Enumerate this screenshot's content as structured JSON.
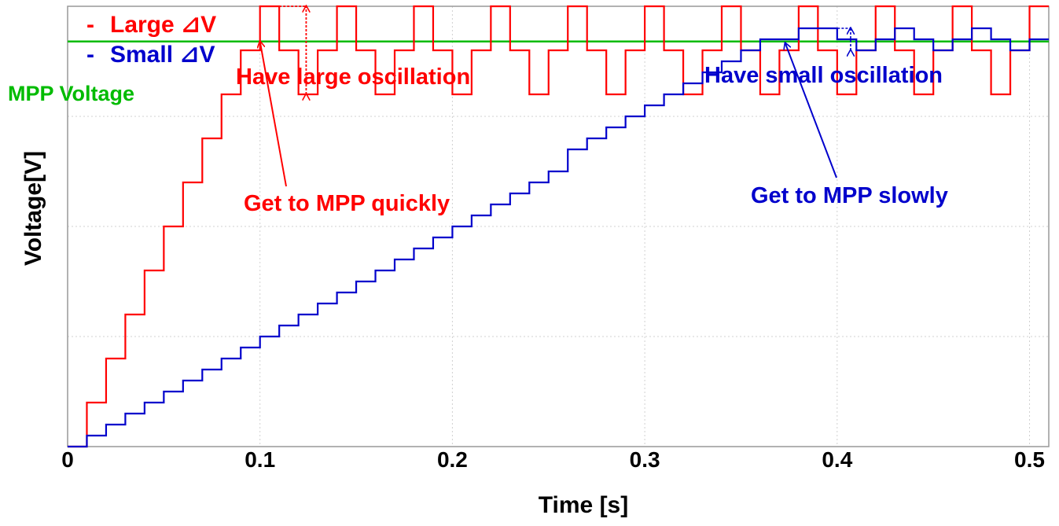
{
  "chart_data": {
    "type": "line",
    "xlabel": "Time [s]",
    "ylabel": "Voltage[V]",
    "xlim": [
      0,
      0.51
    ],
    "ylim": [
      0,
      10
    ],
    "x_ticks": [
      "0",
      "0.1",
      "0.2",
      "0.3",
      "0.4",
      "0.5"
    ],
    "x_tick_values": [
      0,
      0.1,
      0.2,
      0.3,
      0.4,
      0.5
    ],
    "y_gridlines": [
      2.5,
      5,
      7.5,
      10
    ],
    "y_tick_labels_shown": false,
    "grid": true,
    "legend_position": "top-left",
    "colors": {
      "large": "#ff0000",
      "small": "#0000cc",
      "mpp": "#00bb00",
      "grid": "#d0d0d0"
    },
    "mpp_voltage": 9.2,
    "mpp_label": "MPP Voltage",
    "series": [
      {
        "name": "Large ⊿V",
        "legend_label": "Large ⊿V",
        "color": "#ff0000",
        "x": [
          0,
          0.01,
          0.02,
          0.03,
          0.04,
          0.05,
          0.06,
          0.07,
          0.08,
          0.09,
          0.1,
          0.11,
          0.12,
          0.13,
          0.14,
          0.15,
          0.16,
          0.17,
          0.18,
          0.19,
          0.2,
          0.21,
          0.22,
          0.23,
          0.24,
          0.25,
          0.26,
          0.27,
          0.28,
          0.29,
          0.3,
          0.31,
          0.32,
          0.33,
          0.34,
          0.35,
          0.36,
          0.37,
          0.38,
          0.39,
          0.4,
          0.41,
          0.42,
          0.43,
          0.44,
          0.45,
          0.46,
          0.47,
          0.48,
          0.49,
          0.5,
          0.51
        ],
        "y": [
          0,
          1,
          2,
          3,
          4,
          5,
          6,
          7,
          8,
          9,
          10,
          9,
          8,
          9,
          10,
          9,
          8,
          9,
          10,
          9,
          8,
          9,
          10,
          9,
          8,
          9,
          10,
          9,
          8,
          9,
          10,
          9,
          8,
          9,
          10,
          9,
          8,
          9,
          10,
          9,
          8,
          9,
          10,
          9,
          8,
          9,
          10,
          9,
          8,
          9,
          10,
          10
        ]
      },
      {
        "name": "Small ⊿V",
        "legend_label": "Small ⊿V",
        "color": "#0000cc",
        "x": [
          0,
          0.01,
          0.02,
          0.03,
          0.04,
          0.05,
          0.06,
          0.07,
          0.08,
          0.09,
          0.1,
          0.11,
          0.12,
          0.13,
          0.14,
          0.15,
          0.16,
          0.17,
          0.18,
          0.19,
          0.2,
          0.21,
          0.22,
          0.23,
          0.24,
          0.25,
          0.26,
          0.27,
          0.28,
          0.29,
          0.3,
          0.31,
          0.32,
          0.33,
          0.34,
          0.35,
          0.36,
          0.37,
          0.38,
          0.39,
          0.4,
          0.41,
          0.42,
          0.43,
          0.44,
          0.45,
          0.46,
          0.47,
          0.48,
          0.49,
          0.5,
          0.51
        ],
        "y": [
          0,
          0.25,
          0.5,
          0.75,
          1,
          1.25,
          1.5,
          1.75,
          2,
          2.25,
          2.5,
          2.75,
          3,
          3.25,
          3.5,
          3.75,
          4,
          4.25,
          4.5,
          4.75,
          5,
          5.25,
          5.5,
          5.75,
          6,
          6.25,
          6.75,
          7,
          7.25,
          7.5,
          7.75,
          8,
          8.25,
          8.5,
          8.75,
          9,
          9.25,
          9.25,
          9.5,
          9.5,
          9.25,
          9,
          9.25,
          9.5,
          9.25,
          9,
          9.25,
          9.5,
          9.25,
          9,
          9.25,
          9.25
        ]
      }
    ],
    "annotations": [
      {
        "text": "Have large oscillation",
        "color": "#ff0000"
      },
      {
        "text": "Get to MPP quickly",
        "color": "#ff0000"
      },
      {
        "text": "Have small oscillation",
        "color": "#0000cc"
      },
      {
        "text": "Get to MPP slowly",
        "color": "#0000cc"
      }
    ]
  }
}
